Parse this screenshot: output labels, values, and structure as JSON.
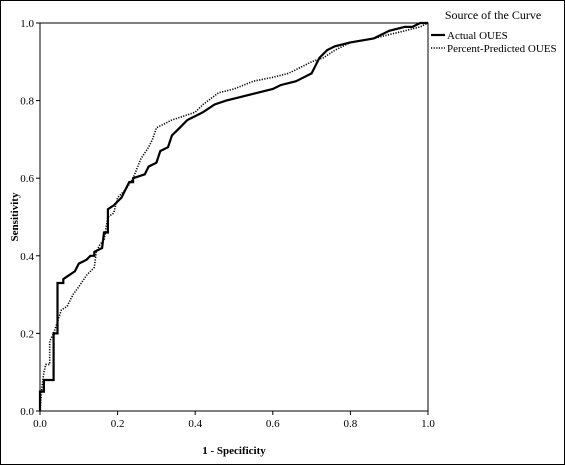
{
  "chart_data": {
    "type": "line",
    "xlabel": "1 - Specificity",
    "ylabel": "Sensitivity",
    "xlim": [
      0,
      1
    ],
    "ylim": [
      0,
      1
    ],
    "x_ticks": [
      0.0,
      0.2,
      0.4,
      0.6,
      0.8,
      1.0
    ],
    "y_ticks": [
      0.0,
      0.2,
      0.4,
      0.6,
      0.8,
      1.0
    ],
    "x_tick_labels": [
      "0.0",
      "0.2",
      "0.4",
      "0.6",
      "0.8",
      "1.0"
    ],
    "y_tick_labels": [
      "0.0",
      "0.2",
      "0.4",
      "0.6",
      "0.8",
      "1.0"
    ],
    "grid": false,
    "legend": {
      "title": "Source of the Curve",
      "position": "top-right, outside plot"
    },
    "series": [
      {
        "name": "Actual OUES",
        "style": "solid",
        "color": "#000000",
        "points": [
          [
            0.0,
            0.0
          ],
          [
            0.0,
            0.05
          ],
          [
            0.01,
            0.05
          ],
          [
            0.01,
            0.08
          ],
          [
            0.02,
            0.08
          ],
          [
            0.035,
            0.08
          ],
          [
            0.035,
            0.2
          ],
          [
            0.045,
            0.2
          ],
          [
            0.045,
            0.33
          ],
          [
            0.06,
            0.33
          ],
          [
            0.06,
            0.34
          ],
          [
            0.075,
            0.35
          ],
          [
            0.09,
            0.36
          ],
          [
            0.1,
            0.38
          ],
          [
            0.12,
            0.39
          ],
          [
            0.13,
            0.4
          ],
          [
            0.14,
            0.4
          ],
          [
            0.14,
            0.41
          ],
          [
            0.16,
            0.42
          ],
          [
            0.165,
            0.46
          ],
          [
            0.175,
            0.46
          ],
          [
            0.175,
            0.52
          ],
          [
            0.19,
            0.53
          ],
          [
            0.2,
            0.54
          ],
          [
            0.21,
            0.55
          ],
          [
            0.22,
            0.57
          ],
          [
            0.23,
            0.59
          ],
          [
            0.24,
            0.59
          ],
          [
            0.24,
            0.6
          ],
          [
            0.27,
            0.61
          ],
          [
            0.28,
            0.63
          ],
          [
            0.3,
            0.64
          ],
          [
            0.31,
            0.67
          ],
          [
            0.33,
            0.68
          ],
          [
            0.34,
            0.71
          ],
          [
            0.36,
            0.73
          ],
          [
            0.38,
            0.75
          ],
          [
            0.4,
            0.76
          ],
          [
            0.42,
            0.77
          ],
          [
            0.45,
            0.79
          ],
          [
            0.48,
            0.8
          ],
          [
            0.52,
            0.81
          ],
          [
            0.56,
            0.82
          ],
          [
            0.6,
            0.83
          ],
          [
            0.62,
            0.84
          ],
          [
            0.66,
            0.85
          ],
          [
            0.68,
            0.86
          ],
          [
            0.7,
            0.87
          ],
          [
            0.72,
            0.91
          ],
          [
            0.74,
            0.93
          ],
          [
            0.76,
            0.94
          ],
          [
            0.8,
            0.95
          ],
          [
            0.86,
            0.96
          ],
          [
            0.88,
            0.97
          ],
          [
            0.9,
            0.98
          ],
          [
            0.94,
            0.99
          ],
          [
            0.96,
            0.99
          ],
          [
            0.98,
            1.0
          ],
          [
            1.0,
            1.0
          ]
        ]
      },
      {
        "name": "Percent-Predicted OUES",
        "style": "dotted",
        "color": "#000000",
        "points": [
          [
            0.0,
            0.0
          ],
          [
            0.005,
            0.06
          ],
          [
            0.01,
            0.1
          ],
          [
            0.015,
            0.12
          ],
          [
            0.025,
            0.12
          ],
          [
            0.025,
            0.18
          ],
          [
            0.035,
            0.2
          ],
          [
            0.045,
            0.23
          ],
          [
            0.055,
            0.26
          ],
          [
            0.07,
            0.27
          ],
          [
            0.085,
            0.3
          ],
          [
            0.1,
            0.32
          ],
          [
            0.12,
            0.35
          ],
          [
            0.14,
            0.37
          ],
          [
            0.145,
            0.41
          ],
          [
            0.155,
            0.43
          ],
          [
            0.165,
            0.44
          ],
          [
            0.175,
            0.5
          ],
          [
            0.19,
            0.51
          ],
          [
            0.2,
            0.55
          ],
          [
            0.22,
            0.57
          ],
          [
            0.24,
            0.6
          ],
          [
            0.26,
            0.65
          ],
          [
            0.28,
            0.68
          ],
          [
            0.29,
            0.7
          ],
          [
            0.3,
            0.73
          ],
          [
            0.32,
            0.74
          ],
          [
            0.34,
            0.75
          ],
          [
            0.37,
            0.76
          ],
          [
            0.4,
            0.77
          ],
          [
            0.42,
            0.79
          ],
          [
            0.46,
            0.82
          ],
          [
            0.5,
            0.83
          ],
          [
            0.55,
            0.85
          ],
          [
            0.6,
            0.86
          ],
          [
            0.64,
            0.87
          ],
          [
            0.66,
            0.88
          ],
          [
            0.7,
            0.9
          ],
          [
            0.73,
            0.91
          ],
          [
            0.76,
            0.93
          ],
          [
            0.8,
            0.95
          ],
          [
            0.86,
            0.96
          ],
          [
            0.9,
            0.97
          ],
          [
            0.94,
            0.98
          ],
          [
            0.98,
            0.99
          ],
          [
            1.0,
            1.0
          ]
        ]
      }
    ]
  }
}
